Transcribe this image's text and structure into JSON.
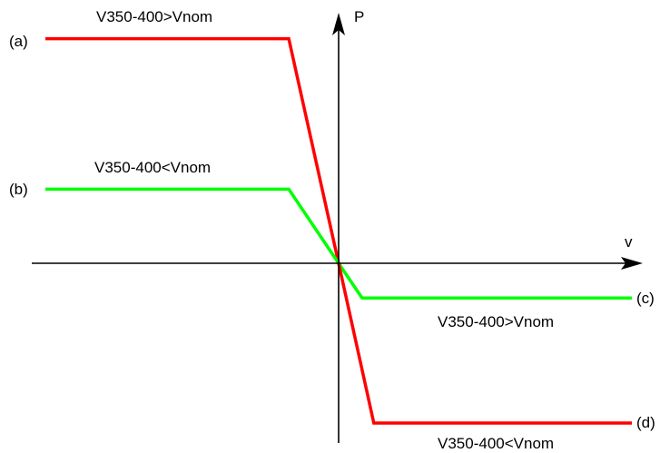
{
  "chart_data": {
    "type": "line",
    "title": "",
    "xlabel": "v",
    "ylabel": "P",
    "xlim": [
      -1.0,
      1.0
    ],
    "ylim": [
      -1.0,
      1.0
    ],
    "grid": false,
    "series": [
      {
        "name": "",
        "tag": "(a)",
        "annotation": "V350-400>Vnom",
        "color": "#ff0000",
        "x": [
          -1.0,
          -0.17,
          0.0
        ],
        "y": [
          0.97,
          0.97,
          0.0
        ]
      },
      {
        "name": "",
        "tag": "(b)",
        "annotation": "V350-400<Vnom",
        "color": "#00ff00",
        "x": [
          -1.0,
          -0.17,
          0.0
        ],
        "y": [
          0.32,
          0.32,
          0.0
        ]
      },
      {
        "name": "",
        "tag": "(c)",
        "annotation": "V350-400>Vnom",
        "color": "#00ff00",
        "x": [
          0.0,
          0.08,
          1.0
        ],
        "y": [
          0.0,
          -0.15,
          -0.15
        ]
      },
      {
        "name": "",
        "tag": "(d)",
        "annotation": "V350-400<Vnom",
        "color": "#ff0000",
        "x": [
          0.0,
          0.12,
          1.0
        ],
        "y": [
          0.0,
          -0.69,
          -0.69
        ]
      }
    ]
  }
}
